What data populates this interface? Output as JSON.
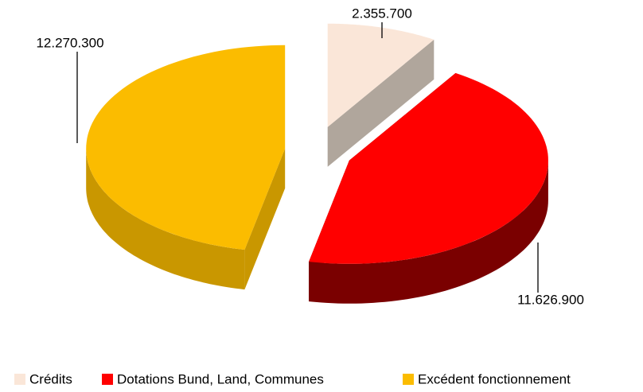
{
  "chart_data": {
    "type": "pie3d",
    "categories": [
      "Crédits",
      "Dotations Bund, Land, Communes",
      "Excédent fonctionnement"
    ],
    "values": [
      2355700,
      11626900,
      12270300
    ],
    "value_labels": [
      "2.355.700",
      "11.626.900",
      "12.270.300"
    ],
    "colors": [
      "#fae6d8",
      "#ff0000",
      "#fbbc00"
    ],
    "side_colors": [
      "#b0a69c",
      "#7a0000",
      "#c99700"
    ],
    "legend": "bottom"
  }
}
